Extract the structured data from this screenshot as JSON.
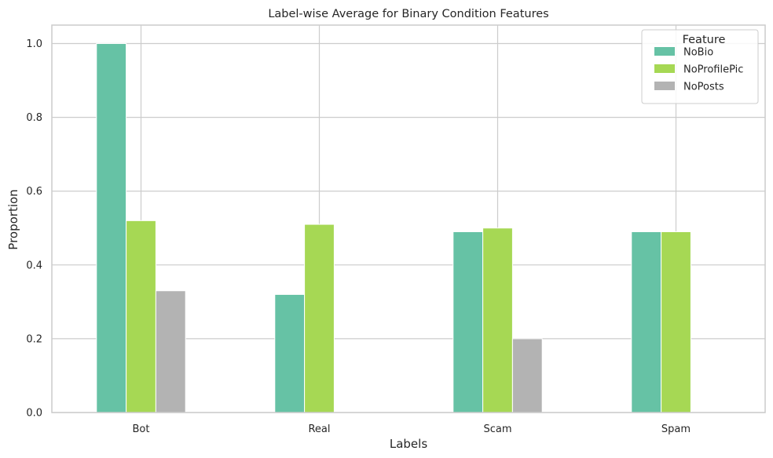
{
  "chart_data": {
    "type": "bar",
    "title": "Label-wise Average for Binary Condition Features",
    "xlabel": "Labels",
    "ylabel": "Proportion",
    "categories": [
      "Bot",
      "Real",
      "Scam",
      "Spam"
    ],
    "series": [
      {
        "name": "NoBio",
        "color": "#66c2a5",
        "values": [
          1.0,
          0.32,
          0.49,
          0.49
        ]
      },
      {
        "name": "NoProfilePic",
        "color": "#a6d854",
        "values": [
          0.52,
          0.51,
          0.5,
          0.49
        ]
      },
      {
        "name": "NoPosts",
        "color": "#b3b3b3",
        "values": [
          0.33,
          0.0,
          0.2,
          0.0
        ]
      }
    ],
    "ylim": [
      0,
      1.05
    ],
    "yticks": [
      0.0,
      0.2,
      0.4,
      0.6,
      0.8,
      1.0
    ],
    "ytick_labels": [
      "0.0",
      "0.2",
      "0.4",
      "0.6",
      "0.8",
      "1.0"
    ],
    "grid": true,
    "legend": {
      "title": "Feature",
      "position": "top-right"
    }
  }
}
